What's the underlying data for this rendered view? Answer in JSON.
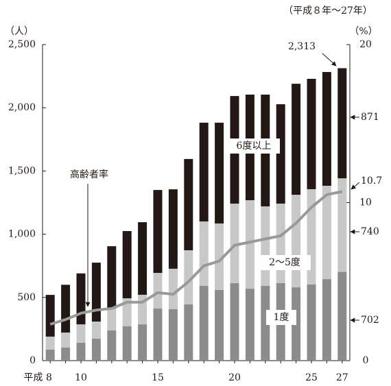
{
  "chart_data": {
    "type": "bar",
    "period": "（平成８年〜27年）",
    "y_unit": "（人）",
    "y2_unit": "（%）",
    "categories": [
      "平成 8",
      null,
      "10",
      null,
      null,
      null,
      null,
      "15",
      null,
      null,
      null,
      null,
      "20",
      null,
      null,
      null,
      null,
      "25",
      null,
      "27"
    ],
    "series": [
      {
        "name": "1度",
        "color": "#8c8c8c",
        "values": [
          87,
          103,
          141,
          174,
          239,
          271,
          287,
          412,
          407,
          445,
          591,
          559,
          613,
          569,
          591,
          613,
          580,
          602,
          645,
          702
        ]
      },
      {
        "name": "2〜5度",
        "color": "#c8c8c8",
        "values": [
          103,
          119,
          146,
          135,
          173,
          222,
          234,
          282,
          320,
          428,
          510,
          526,
          629,
          700,
          629,
          629,
          732,
          754,
          738,
          740
        ]
      },
      {
        "name": "6度以上",
        "color": "#231815",
        "values": [
          330,
          378,
          403,
          466,
          493,
          532,
          574,
          656,
          628,
          722,
          781,
          797,
          851,
          835,
          884,
          786,
          878,
          873,
          900,
          871
        ]
      },
      {
        "name": "高齢者率",
        "color": "#999999",
        "axis": "y2",
        "values": [
          2.3,
          2.6,
          3.0,
          3.2,
          3.3,
          3.7,
          3.7,
          4.3,
          4.2,
          5.0,
          6.0,
          6.3,
          7.3,
          7.5,
          7.7,
          7.9,
          8.7,
          9.7,
          10.5,
          10.7
        ]
      }
    ],
    "ylim": [
      0,
      2500
    ],
    "yticks": [
      0,
      500,
      {
        "value": 1000,
        "label": "1,000"
      },
      {
        "value": 1500,
        "label": "1,500"
      },
      {
        "value": 2000,
        "label": "2,000"
      },
      {
        "value": 2500,
        "label": "2,500"
      }
    ],
    "y2lim": [
      0,
      20
    ],
    "y2ticks": [
      0,
      10,
      20
    ],
    "annotations": [
      "2,313",
      "871",
      "10.7",
      "740",
      "702"
    ]
  }
}
